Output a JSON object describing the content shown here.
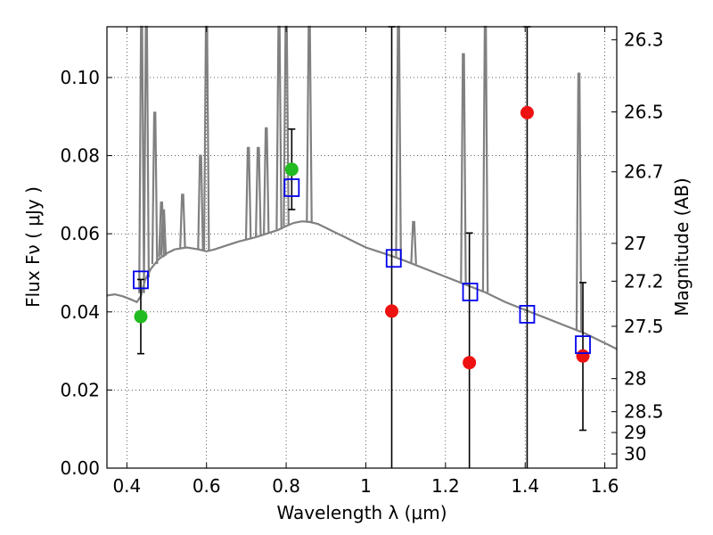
{
  "chart_data": {
    "type": "scatter",
    "xlabel": "Wavelength  λ (μm)",
    "ylabel": "Flux  Fν  ( μJy )",
    "y2label": "Magnitude (AB)",
    "xlim": [
      0.35,
      1.63
    ],
    "ylim": [
      0.0,
      0.113
    ],
    "grid": true,
    "x_ticks": [
      0.4,
      0.6,
      0.8,
      1.0,
      1.2,
      1.4,
      1.6
    ],
    "x_tick_labels": [
      "0.4",
      "0.6",
      "0.8",
      "1",
      "1.2",
      "1.4",
      "1.6"
    ],
    "y_ticks": [
      0.0,
      0.02,
      0.04,
      0.06,
      0.08,
      0.1
    ],
    "y_tick_labels": [
      "0.00",
      "0.02",
      "0.04",
      "0.06",
      "0.08",
      "0.10"
    ],
    "mag_ticks": [
      "26.3",
      "26.5",
      "26.7",
      "27",
      "27.2",
      "27.5",
      "28",
      "28.5",
      "29",
      "30"
    ],
    "colors": {
      "spectrum": "#808080",
      "green": "#22bb22",
      "red": "#ee1111",
      "model": "#0000ee",
      "errorbar": "#000000"
    },
    "series": [
      {
        "marker": "green-circle",
        "points": [
          {
            "x": 0.435,
            "y": 0.0388,
            "yerr_low": 0.0293,
            "yerr_high": 0.0483
          },
          {
            "x": 0.814,
            "y": 0.0765,
            "yerr_low": 0.0662,
            "yerr_high": 0.0868
          }
        ]
      },
      {
        "marker": "red-circle",
        "points": [
          {
            "x": 1.065,
            "y": 0.0402,
            "yerr_low": 0.0,
            "yerr_high": 0.113
          },
          {
            "x": 1.26,
            "y": 0.027,
            "yerr_low": 0.0,
            "yerr_high": 0.0602
          },
          {
            "x": 1.405,
            "y": 0.091,
            "yerr_low": 0.0,
            "yerr_high": 0.113
          },
          {
            "x": 1.545,
            "y": 0.0287,
            "yerr_low": 0.0097,
            "yerr_high": 0.0475
          }
        ]
      },
      {
        "marker": "blue-square",
        "points": [
          {
            "x": 0.435,
            "y": 0.0482
          },
          {
            "x": 0.814,
            "y": 0.0718
          },
          {
            "x": 1.07,
            "y": 0.0537
          },
          {
            "x": 1.262,
            "y": 0.0451
          },
          {
            "x": 1.405,
            "y": 0.0394
          },
          {
            "x": 1.545,
            "y": 0.0316
          }
        ]
      }
    ],
    "spectrum": {
      "continuum": [
        [
          0.35,
          0.0442
        ],
        [
          0.37,
          0.0445
        ],
        [
          0.39,
          0.044
        ],
        [
          0.41,
          0.0432
        ],
        [
          0.425,
          0.0425
        ],
        [
          0.435,
          0.044
        ],
        [
          0.445,
          0.048
        ],
        [
          0.46,
          0.051
        ],
        [
          0.48,
          0.0535
        ],
        [
          0.5,
          0.055
        ],
        [
          0.52,
          0.056
        ],
        [
          0.55,
          0.0565
        ],
        [
          0.58,
          0.056
        ],
        [
          0.6,
          0.0555
        ],
        [
          0.62,
          0.056
        ],
        [
          0.65,
          0.057
        ],
        [
          0.68,
          0.058
        ],
        [
          0.7,
          0.0585
        ],
        [
          0.72,
          0.059
        ],
        [
          0.75,
          0.06
        ],
        [
          0.78,
          0.061
        ],
        [
          0.8,
          0.062
        ],
        [
          0.82,
          0.0628
        ],
        [
          0.84,
          0.0632
        ],
        [
          0.86,
          0.063
        ],
        [
          0.88,
          0.0625
        ],
        [
          0.9,
          0.0615
        ],
        [
          0.92,
          0.0605
        ],
        [
          0.95,
          0.059
        ],
        [
          0.98,
          0.0575
        ],
        [
          1.0,
          0.0565
        ],
        [
          1.03,
          0.0555
        ],
        [
          1.06,
          0.0545
        ],
        [
          1.1,
          0.053
        ],
        [
          1.15,
          0.051
        ],
        [
          1.2,
          0.049
        ],
        [
          1.25,
          0.047
        ],
        [
          1.3,
          0.045
        ],
        [
          1.35,
          0.0425
        ],
        [
          1.4,
          0.0405
        ],
        [
          1.45,
          0.0385
        ],
        [
          1.5,
          0.0365
        ],
        [
          1.55,
          0.0345
        ],
        [
          1.6,
          0.032
        ],
        [
          1.63,
          0.0305
        ]
      ],
      "lines": [
        [
          0.437,
          0.113
        ],
        [
          0.449,
          0.113
        ],
        [
          0.47,
          0.091
        ],
        [
          0.487,
          0.068
        ],
        [
          0.492,
          0.066
        ],
        [
          0.54,
          0.07
        ],
        [
          0.585,
          0.08
        ],
        [
          0.6,
          0.113
        ],
        [
          0.705,
          0.082
        ],
        [
          0.73,
          0.082
        ],
        [
          0.75,
          0.087
        ],
        [
          0.782,
          0.113
        ],
        [
          0.8,
          0.113
        ],
        [
          0.858,
          0.113
        ],
        [
          1.082,
          0.113
        ],
        [
          1.12,
          0.063
        ],
        [
          1.245,
          0.106
        ],
        [
          1.3,
          0.113
        ],
        [
          1.535,
          0.101
        ]
      ]
    }
  }
}
